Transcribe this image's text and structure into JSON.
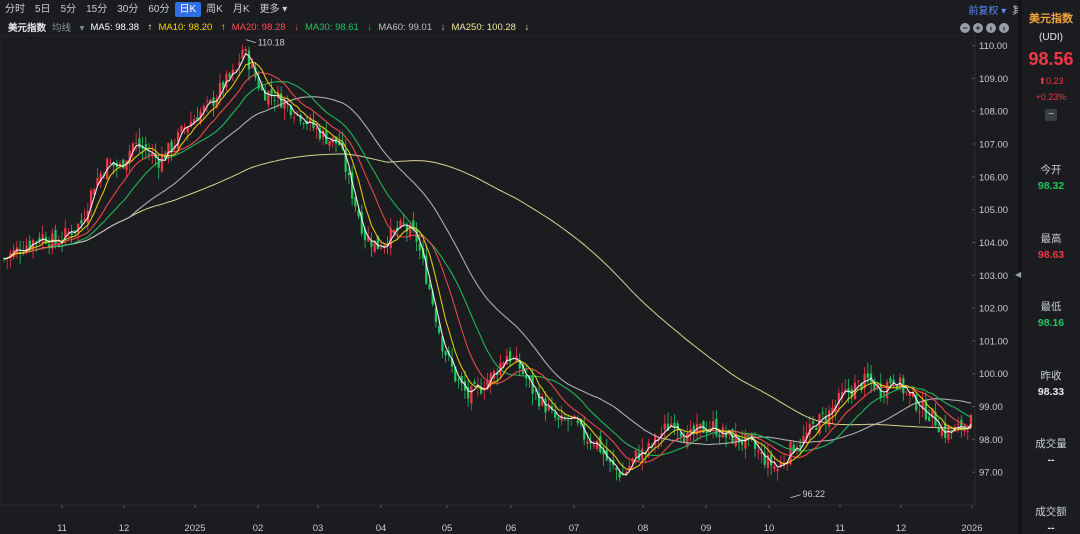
{
  "toolbar": {
    "timeframes": [
      "分时",
      "5日",
      "5分",
      "15分",
      "30分",
      "60分",
      "日K",
      "周K",
      "月K",
      "更多"
    ],
    "active": "日K",
    "adjust": "前复权",
    "other": "其他"
  },
  "ma_bar": {
    "title": "美元指数",
    "avg_label": "均线",
    "ma5": "MA5: 98.38",
    "ma10": "MA10: 98.20",
    "ma20": "MA20: 98.28",
    "ma30": "MA30: 98.61",
    "ma60": "MA60: 99.01",
    "ma250": "MA250: 100.28",
    "colors": {
      "ma5": "#ffffff",
      "ma10": "#f5d90a",
      "ma20": "#ff4d4d",
      "ma30": "#22c55e",
      "ma60": "#bfbfbf",
      "ma250": "#f0e6a0"
    }
  },
  "quote": {
    "name": "美元指数",
    "code": "(UDI)",
    "price": "98.56",
    "change": "0.23",
    "change_pct": "+0.23%",
    "open_label": "今开",
    "open": "98.32",
    "high_label": "最高",
    "high": "98.63",
    "low_label": "最低",
    "low": "98.16",
    "prev_label": "昨收",
    "prev": "98.33",
    "volume_label": "成交量",
    "volume": "--",
    "amount_label": "成交额",
    "amount": "--"
  },
  "chart_data": {
    "type": "candlestick",
    "y_ticks": [
      "110.00",
      "109.00",
      "108.00",
      "107.00",
      "106.00",
      "105.00",
      "104.00",
      "103.00",
      "102.00",
      "101.00",
      "100.00",
      "99.00",
      "98.00",
      "97.00"
    ],
    "ylim": [
      96.0,
      110.2
    ],
    "x_ticks": [
      "11",
      "12",
      "2025",
      "02",
      "03",
      "04",
      "05",
      "06",
      "07",
      "08",
      "09",
      "10",
      "11",
      "12",
      "2026"
    ],
    "annotations": {
      "high": "110.18",
      "low": "96.22"
    },
    "colors": {
      "up": "#f23645",
      "down": "#22c55e"
    },
    "close_path": [
      [
        0,
        103.5
      ],
      [
        6,
        103.9
      ],
      [
        12,
        104.2
      ],
      [
        16,
        104.0
      ],
      [
        20,
        104.3
      ],
      [
        24,
        104.6
      ],
      [
        28,
        105.8
      ],
      [
        32,
        106.4
      ],
      [
        36,
        106.3
      ],
      [
        40,
        107.0
      ],
      [
        44,
        106.8
      ],
      [
        48,
        106.5
      ],
      [
        52,
        106.9
      ],
      [
        56,
        107.5
      ],
      [
        60,
        107.9
      ],
      [
        64,
        108.2
      ],
      [
        68,
        108.8
      ],
      [
        72,
        109.2
      ],
      [
        74,
        109.9
      ],
      [
        76,
        109.5
      ],
      [
        80,
        108.6
      ],
      [
        84,
        108.5
      ],
      [
        88,
        108.2
      ],
      [
        92,
        107.9
      ],
      [
        96,
        107.5
      ],
      [
        100,
        107.2
      ],
      [
        104,
        107.0
      ],
      [
        108,
        105.5
      ],
      [
        112,
        104.2
      ],
      [
        116,
        103.9
      ],
      [
        120,
        104.2
      ],
      [
        124,
        104.5
      ],
      [
        128,
        104.1
      ],
      [
        132,
        102.6
      ],
      [
        136,
        100.9
      ],
      [
        140,
        99.9
      ],
      [
        144,
        99.3
      ],
      [
        148,
        99.6
      ],
      [
        152,
        100.0
      ],
      [
        156,
        100.6
      ],
      [
        160,
        100.2
      ],
      [
        164,
        99.5
      ],
      [
        168,
        99.0
      ],
      [
        172,
        98.5
      ],
      [
        176,
        98.6
      ],
      [
        180,
        98.1
      ],
      [
        184,
        97.9
      ],
      [
        188,
        97.2
      ],
      [
        192,
        96.9
      ],
      [
        196,
        97.5
      ],
      [
        200,
        97.7
      ],
      [
        204,
        98.2
      ],
      [
        208,
        98.6
      ],
      [
        212,
        98.0
      ],
      [
        216,
        98.3
      ],
      [
        220,
        98.4
      ],
      [
        224,
        98.1
      ],
      [
        228,
        98.0
      ],
      [
        232,
        97.8
      ],
      [
        236,
        97.4
      ],
      [
        240,
        97.1
      ],
      [
        244,
        97.7
      ],
      [
        248,
        98.0
      ],
      [
        252,
        98.5
      ],
      [
        256,
        98.8
      ],
      [
        260,
        99.3
      ],
      [
        264,
        99.6
      ],
      [
        268,
        99.8
      ],
      [
        272,
        99.5
      ],
      [
        276,
        99.9
      ],
      [
        280,
        99.4
      ],
      [
        284,
        99.0
      ],
      [
        288,
        98.7
      ],
      [
        292,
        98.2
      ],
      [
        296,
        98.3
      ],
      [
        300,
        98.56
      ]
    ]
  }
}
